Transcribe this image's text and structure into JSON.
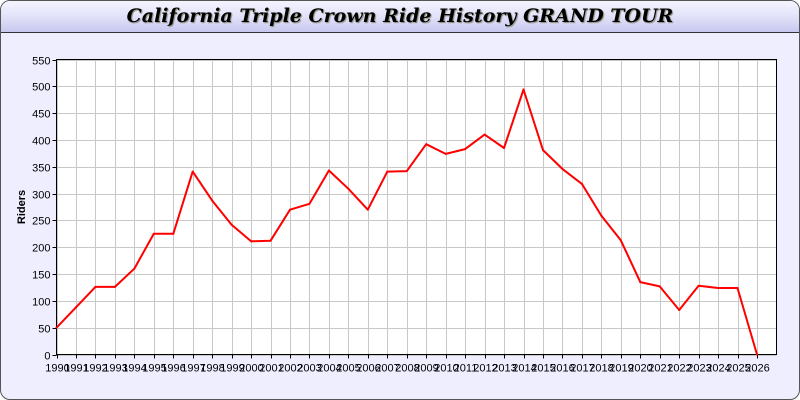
{
  "title": "California Triple Crown Ride History GRAND TOUR",
  "chart_data": {
    "type": "line",
    "title": "California Triple Crown Ride History GRAND TOUR",
    "xlabel": "",
    "ylabel": "Riders",
    "ylim": [
      0,
      550
    ],
    "yticks": [
      0,
      50,
      100,
      150,
      200,
      250,
      300,
      350,
      400,
      450,
      500,
      550
    ],
    "grid": true,
    "line_color": "#ff0000",
    "x": [
      1990,
      1991,
      1992,
      1993,
      1994,
      1995,
      1996,
      1997,
      1998,
      1999,
      2000,
      2001,
      2002,
      2003,
      2004,
      2005,
      2006,
      2007,
      2008,
      2009,
      2010,
      2011,
      2012,
      2013,
      2014,
      2015,
      2016,
      2017,
      2018,
      2019,
      2020,
      2021,
      2022,
      2023,
      2024,
      2025,
      2026
    ],
    "series": [
      {
        "values": [
          50,
          88,
          126,
          126,
          160,
          225,
          225,
          341,
          287,
          242,
          211,
          212,
          270,
          281,
          343,
          309,
          270,
          341,
          342,
          392,
          374,
          383,
          410,
          385,
          494,
          381,
          346,
          318,
          259,
          213,
          135,
          127,
          83,
          128,
          124,
          124,
          0
        ]
      }
    ]
  }
}
